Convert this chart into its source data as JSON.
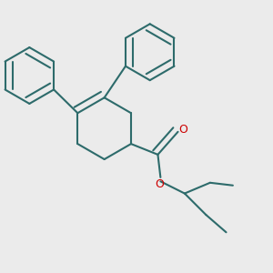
{
  "bg_color": "#ebebeb",
  "bond_color": "#2d6b6b",
  "o_color": "#cc0000",
  "lw": 1.5,
  "dbo": 0.018,
  "fig_size": [
    3.0,
    3.0
  ],
  "dpi": 100,
  "xlim": [
    0.0,
    1.0
  ],
  "ylim": [
    0.0,
    1.0
  ]
}
